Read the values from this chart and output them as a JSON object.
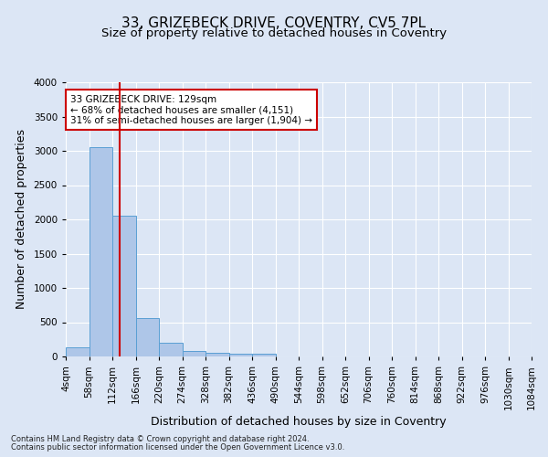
{
  "title1": "33, GRIZEBECK DRIVE, COVENTRY, CV5 7PL",
  "title2": "Size of property relative to detached houses in Coventry",
  "xlabel": "Distribution of detached houses by size in Coventry",
  "ylabel": "Number of detached properties",
  "footnote1": "Contains HM Land Registry data © Crown copyright and database right 2024.",
  "footnote2": "Contains public sector information licensed under the Open Government Licence v3.0.",
  "bar_edges": [
    4,
    58,
    112,
    166,
    220,
    274,
    328,
    382,
    436,
    490,
    544,
    598,
    652,
    706,
    760,
    814,
    868,
    922,
    976,
    1030,
    1084
  ],
  "bar_heights": [
    140,
    3060,
    2060,
    560,
    200,
    80,
    55,
    40,
    40,
    0,
    0,
    0,
    0,
    0,
    0,
    0,
    0,
    0,
    0,
    0
  ],
  "bar_color": "#aec6e8",
  "bar_edgecolor": "#5a9fd4",
  "vline_x": 129,
  "vline_color": "#cc0000",
  "annotation_text": "33 GRIZEBECK DRIVE: 129sqm\n← 68% of detached houses are smaller (4,151)\n31% of semi-detached houses are larger (1,904) →",
  "annotation_box_color": "#cc0000",
  "annotation_text_color": "#000000",
  "annotation_facecolor": "#ffffff",
  "bg_color": "#dce6f5",
  "axes_bg_color": "#dce6f5",
  "ylim": [
    0,
    4000
  ],
  "yticks": [
    0,
    500,
    1000,
    1500,
    2000,
    2500,
    3000,
    3500,
    4000
  ],
  "grid_color": "#ffffff",
  "title1_fontsize": 11,
  "title2_fontsize": 9.5,
  "xlabel_fontsize": 9,
  "ylabel_fontsize": 9,
  "tick_fontsize": 7.5,
  "annot_fontsize": 7.5
}
